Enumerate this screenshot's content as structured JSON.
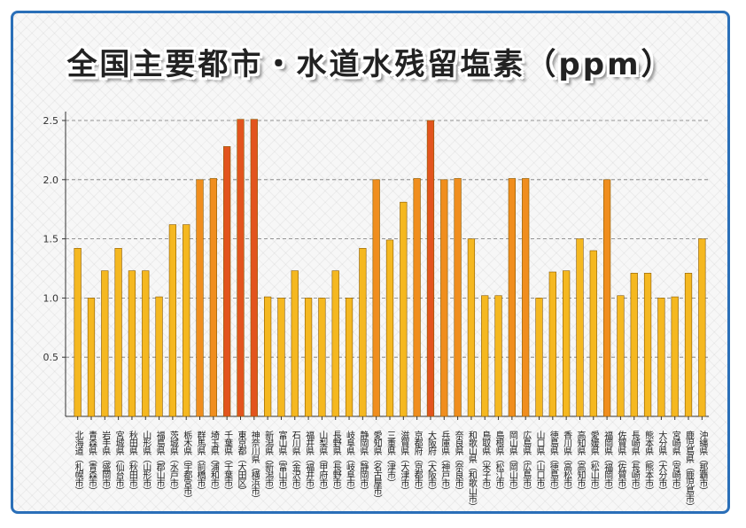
{
  "chart_data": {
    "type": "bar",
    "title": "全国主要都市・水道水残留塩素（ppm）",
    "ylim": [
      0,
      2.5
    ],
    "yticks": [
      "0.5",
      "1.0",
      "1.5",
      "2.0",
      "2.5"
    ],
    "grid": true,
    "bar_colors": {
      "normal": "#f5b820",
      "mid": "#f08e1e",
      "high": "#e2541e"
    },
    "categories": [
      "北海道（札幌市）",
      "青森県（青森市）",
      "岩手県（盛岡市）",
      "宮城県（仙台市）",
      "秋田県（秋田市）",
      "山形県（山形市）",
      "福島県（郡山市）",
      "茨城県（水戸市）",
      "栃木県（宇都宮市）",
      "群馬県（前橋市）",
      "埼玉県（浦和市）",
      "千葉県（千葉市）",
      "東京都（大田区）",
      "神奈川県（横浜市）",
      "新潟県（新潟市）",
      "富山県（富山市）",
      "石川県（金沢市）",
      "福井県（福井市）",
      "山梨県（甲府市）",
      "長野県（長野市）",
      "岐阜県（岐阜市）",
      "静岡県（静岡市）",
      "愛知県（名古屋市）",
      "三重県（津市）",
      "滋賀県（大津市）",
      "京都府（京都市）",
      "大阪府（大阪市）",
      "兵庫県（神戸市）",
      "奈良県（奈良市）",
      "和歌山県（和歌山市）",
      "鳥取県（米子市）",
      "島根県（松江市）",
      "岡山県（岡山市）",
      "広島県（広島市）",
      "山口県（山口市）",
      "徳島県（徳島市）",
      "香川県（高松市）",
      "高知県（高知市）",
      "愛媛県（松山市）",
      "福岡県（福岡市）",
      "佐賀県（佐賀市）",
      "長崎県（長崎市）",
      "熊本県（熊本市）",
      "大分県（大分市）",
      "宮崎県（宮崎市）",
      "鹿児島県（鹿児島市）",
      "沖縄県（那覇市）"
    ],
    "values": [
      1.42,
      1.0,
      1.23,
      1.42,
      1.23,
      1.23,
      1.01,
      1.62,
      1.62,
      2.0,
      2.01,
      2.28,
      2.51,
      2.51,
      1.01,
      1.0,
      1.23,
      1.0,
      1.0,
      1.23,
      1.0,
      1.42,
      2.0,
      1.49,
      1.81,
      2.01,
      2.5,
      2.0,
      2.01,
      1.5,
      1.02,
      1.02,
      2.01,
      2.01,
      1.0,
      1.22,
      1.23,
      1.5,
      1.4,
      2.0,
      1.02,
      1.21,
      1.21,
      1.0,
      1.01,
      1.21,
      1.5
    ]
  }
}
